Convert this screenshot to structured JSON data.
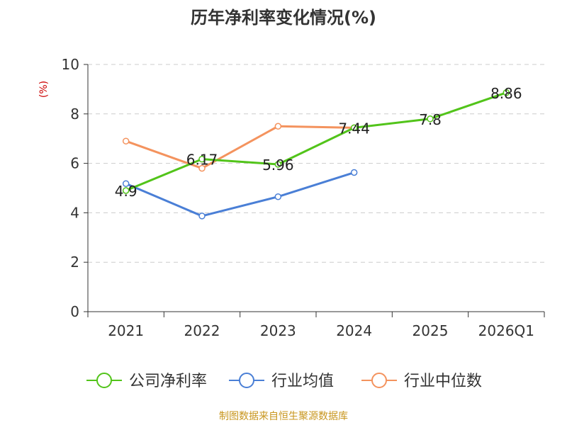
{
  "chart_data": {
    "type": "line",
    "title": "历年净利率变化情况(%)",
    "ylabel": "(%)",
    "xlabel": "",
    "categories": [
      "2021",
      "2022",
      "2023",
      "2024",
      "2025",
      "2026Q1"
    ],
    "ylim": [
      0,
      10
    ],
    "yticks": [
      0,
      2,
      4,
      6,
      8,
      10
    ],
    "grid": true,
    "legend_position": "bottom",
    "series": [
      {
        "name": "公司净利率",
        "color": "#52c41a",
        "values": [
          4.9,
          6.17,
          5.96,
          7.44,
          7.8,
          8.86
        ],
        "labels": [
          "4.9",
          "6.17",
          "5.96",
          "7.44",
          "7.8",
          "8.86"
        ]
      },
      {
        "name": "行业均值",
        "color": "#4a7fd6",
        "values": [
          5.18,
          3.87,
          4.65,
          5.63,
          null,
          null
        ]
      },
      {
        "name": "行业中位数",
        "color": "#f4935e",
        "values": [
          6.9,
          5.8,
          7.5,
          7.44,
          null,
          null
        ]
      }
    ]
  },
  "source_note": "制图数据来自恒生聚源数据库"
}
